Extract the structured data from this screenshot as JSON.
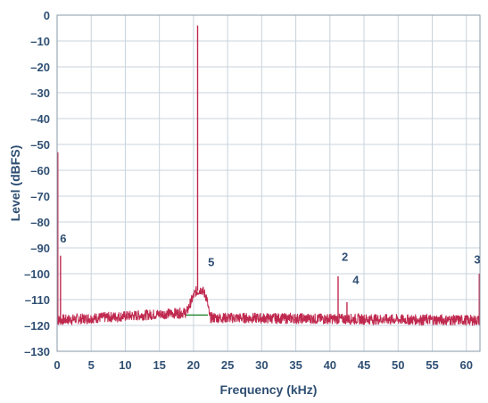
{
  "chart_data": {
    "type": "line",
    "title": "",
    "xlabel": "Frequency (kHz)",
    "ylabel": "Level (dBFS)",
    "xlim": [
      0,
      62
    ],
    "ylim": [
      -130,
      0
    ],
    "x_ticks": [
      "0",
      "5",
      "10",
      "15",
      "20",
      "25",
      "30",
      "35",
      "40",
      "45",
      "50",
      "55",
      "60"
    ],
    "y_ticks": [
      "0",
      "–10",
      "–20",
      "–30",
      "–40",
      "–50",
      "–60",
      "–70",
      "–80",
      "–90",
      "–100",
      "–110",
      "–120",
      "–130"
    ],
    "grid": true,
    "colors": {
      "series": "#c0294f",
      "reference": "#2e8b3a",
      "grid": "#c8d3dd",
      "text": "#2f4f73"
    },
    "series": [
      {
        "style": "noisy-spectrum",
        "noise_floor_db": -118,
        "points": [
          [
            0,
            -118
          ],
          [
            19,
            -115
          ],
          [
            19.6,
            -111
          ],
          [
            20.3,
            -107
          ],
          [
            21.2,
            -106
          ],
          [
            21.9,
            -109
          ],
          [
            22.4,
            -117
          ],
          [
            62,
            -118
          ]
        ]
      },
      {
        "style": "reference-line",
        "points": [
          [
            18.9,
            -116
          ],
          [
            22.1,
            -116
          ]
        ]
      }
    ],
    "peaks": [
      {
        "x": 0.1,
        "y": -53
      },
      {
        "x": 0.5,
        "y": -93
      },
      {
        "x": 20.6,
        "y": -4
      },
      {
        "x": 41.2,
        "y": -101
      },
      {
        "x": 42.5,
        "y": -111
      },
      {
        "x": 61.9,
        "y": -100
      }
    ],
    "annotations": [
      {
        "text": "6",
        "x": 0.9,
        "y": -88
      },
      {
        "text": "5",
        "x": 22.6,
        "y": -97
      },
      {
        "text": "2",
        "x": 42.2,
        "y": -95
      },
      {
        "text": "4",
        "x": 43.8,
        "y": -104
      },
      {
        "text": "3",
        "x": 61.6,
        "y": -96
      }
    ]
  }
}
